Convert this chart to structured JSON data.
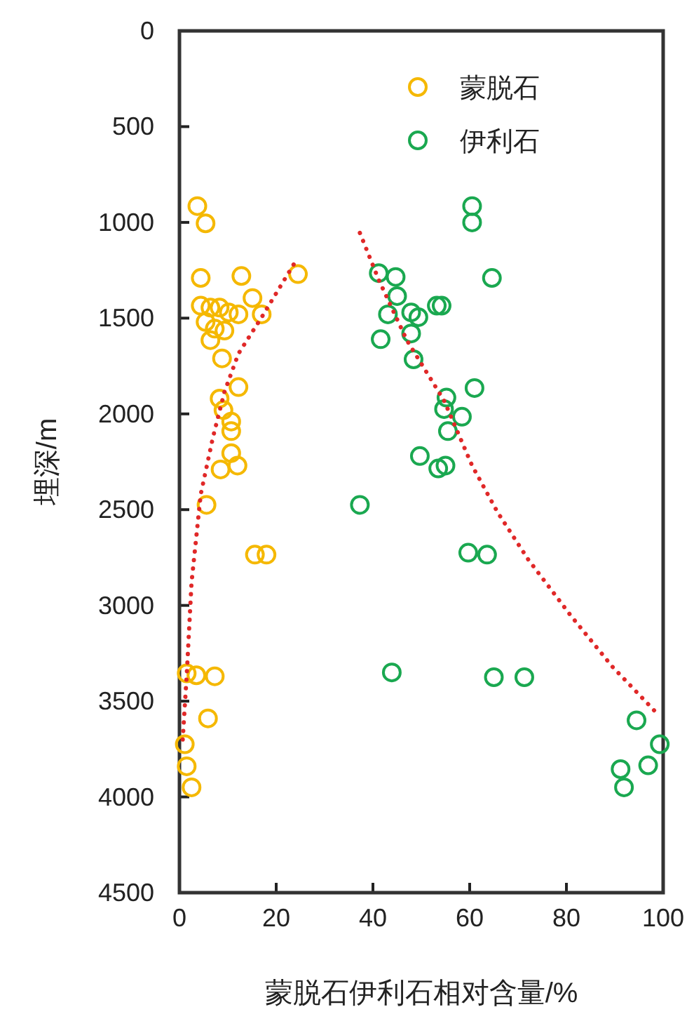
{
  "chart_data": {
    "type": "scatter",
    "xlabel": "蒙脱石伊利石相对含量/%",
    "ylabel": "埋深/m",
    "xlim": [
      0,
      100
    ],
    "xticks": [
      0,
      20,
      40,
      60,
      80,
      100
    ],
    "ylim": [
      4500,
      0
    ],
    "yticks": [
      0,
      500,
      1000,
      1500,
      2000,
      2500,
      3000,
      3500,
      4000,
      4500
    ],
    "grid": false,
    "legend": "top right",
    "marker": "circle",
    "series": [
      {
        "name": "蒙脱石",
        "color": "#f5b800",
        "x": [
          3.7,
          5.4,
          4.4,
          12.8,
          24.5,
          4.4,
          6.4,
          8.3,
          10.2,
          12.2,
          15.1,
          17,
          5.4,
          7.3,
          9.3,
          6.4,
          8.8,
          12.2,
          8.3,
          9.1,
          10.7,
          10.7,
          10.7,
          12,
          8.5,
          5.6,
          15.6,
          18,
          3.5,
          7.3,
          1.5,
          5.9,
          1.1,
          1.5,
          2.5
        ],
        "values": [
          915,
          1005,
          1290,
          1280,
          1270,
          1435,
          1445,
          1445,
          1470,
          1480,
          1395,
          1480,
          1520,
          1555,
          1565,
          1615,
          1710,
          1860,
          1920,
          1980,
          2040,
          2090,
          2205,
          2270,
          2290,
          2475,
          2735,
          2735,
          3365,
          3370,
          3355,
          3590,
          3725,
          3840,
          3950
        ]
      },
      {
        "name": "伊利石",
        "color": "#1aa850",
        "x": [
          60.5,
          60.5,
          41.2,
          44.7,
          64.6,
          45,
          43.1,
          47.9,
          49.4,
          53.2,
          54.2,
          47.9,
          41.6,
          48.4,
          61,
          55.2,
          54.7,
          58.4,
          55.5,
          49.7,
          53.5,
          55,
          37.3,
          59.7,
          63.6,
          43.9,
          65,
          71.3,
          94.5,
          99.3,
          96.9,
          91.2,
          91.9
        ],
        "values": [
          915,
          1000,
          1265,
          1285,
          1290,
          1385,
          1480,
          1470,
          1495,
          1435,
          1435,
          1580,
          1610,
          1715,
          1865,
          1915,
          1975,
          2015,
          2090,
          2220,
          2285,
          2270,
          2475,
          2725,
          2735,
          3350,
          3375,
          3375,
          3600,
          3725,
          3835,
          3855,
          3950
        ]
      },
      {
        "type": "line",
        "color": "#e02828",
        "marker": "none",
        "line_style": "dotted",
        "x": [
          23.6,
          17,
          12.2,
          9.3,
          6.9,
          4.4,
          2.5,
          1.5,
          0.6
        ],
        "values": [
          1220,
          1495,
          1685,
          1885,
          2125,
          2420,
          2880,
          3365,
          3730
        ]
      },
      {
        "type": "line",
        "color": "#e02828",
        "marker": "none",
        "line_style": "dotted",
        "x": [
          37.3,
          41.2,
          47,
          54.7,
          60.5,
          65.8,
          72.1,
          80.8,
          89.5,
          98.2
        ],
        "values": [
          1055,
          1300,
          1615,
          1930,
          2270,
          2515,
          2760,
          3050,
          3320,
          3550
        ]
      }
    ]
  }
}
